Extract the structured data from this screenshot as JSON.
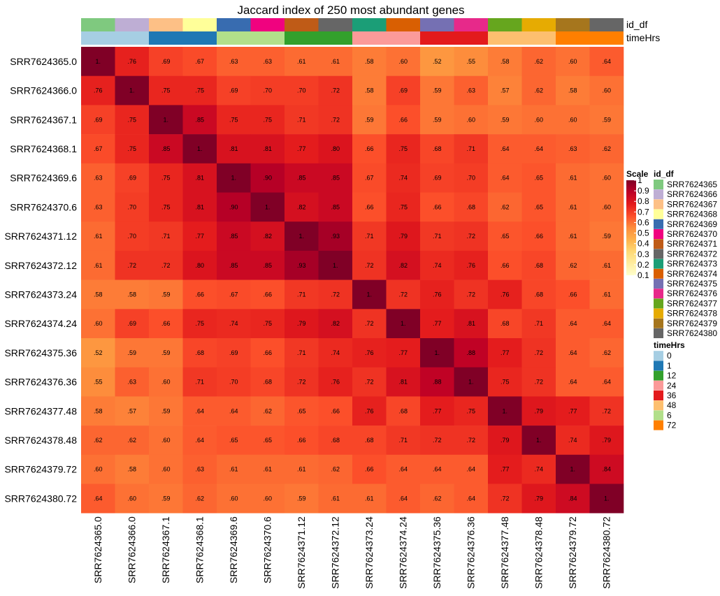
{
  "chart_data": {
    "type": "heatmap",
    "title": "Jaccard index of 250 most abundant genes",
    "rows": [
      "SRR7624365.0",
      "SRR7624366.0",
      "SRR7624367.1",
      "SRR7624368.1",
      "SRR7624369.6",
      "SRR7624370.6",
      "SRR7624371.12",
      "SRR7624372.12",
      "SRR7624373.24",
      "SRR7624374.24",
      "SRR7624375.36",
      "SRR7624376.36",
      "SRR7624377.48",
      "SRR7624378.48",
      "SRR7624379.72",
      "SRR7624380.72"
    ],
    "columns": [
      "SRR7624365.0",
      "SRR7624366.0",
      "SRR7624367.1",
      "SRR7624368.1",
      "SRR7624369.6",
      "SRR7624370.6",
      "SRR7624371.12",
      "SRR7624372.12",
      "SRR7624373.24",
      "SRR7624374.24",
      "SRR7624375.36",
      "SRR7624376.36",
      "SRR7624377.48",
      "SRR7624378.48",
      "SRR7624379.72",
      "SRR7624380.72"
    ],
    "values": [
      [
        1.0,
        0.76,
        0.69,
        0.67,
        0.63,
        0.63,
        0.61,
        0.61,
        0.58,
        0.6,
        0.52,
        0.55,
        0.58,
        0.62,
        0.6,
        0.64
      ],
      [
        0.76,
        1.0,
        0.75,
        0.75,
        0.69,
        0.7,
        0.7,
        0.72,
        0.58,
        0.69,
        0.59,
        0.63,
        0.57,
        0.62,
        0.58,
        0.6
      ],
      [
        0.69,
        0.75,
        1.0,
        0.85,
        0.75,
        0.75,
        0.71,
        0.72,
        0.59,
        0.66,
        0.59,
        0.6,
        0.59,
        0.6,
        0.6,
        0.59
      ],
      [
        0.67,
        0.75,
        0.85,
        1.0,
        0.81,
        0.81,
        0.77,
        0.8,
        0.66,
        0.75,
        0.68,
        0.71,
        0.64,
        0.64,
        0.63,
        0.62
      ],
      [
        0.63,
        0.69,
        0.75,
        0.81,
        1.0,
        0.9,
        0.85,
        0.85,
        0.67,
        0.74,
        0.69,
        0.7,
        0.64,
        0.65,
        0.61,
        0.6
      ],
      [
        0.63,
        0.7,
        0.75,
        0.81,
        0.9,
        1.0,
        0.82,
        0.85,
        0.66,
        0.75,
        0.66,
        0.68,
        0.62,
        0.65,
        0.61,
        0.6
      ],
      [
        0.61,
        0.7,
        0.71,
        0.77,
        0.85,
        0.82,
        1.0,
        0.93,
        0.71,
        0.79,
        0.71,
        0.72,
        0.65,
        0.66,
        0.61,
        0.59
      ],
      [
        0.61,
        0.72,
        0.72,
        0.8,
        0.85,
        0.85,
        0.93,
        1.0,
        0.72,
        0.82,
        0.74,
        0.76,
        0.66,
        0.68,
        0.62,
        0.61
      ],
      [
        0.58,
        0.58,
        0.59,
        0.66,
        0.67,
        0.66,
        0.71,
        0.72,
        1.0,
        0.72,
        0.76,
        0.72,
        0.76,
        0.68,
        0.66,
        0.61
      ],
      [
        0.6,
        0.69,
        0.66,
        0.75,
        0.74,
        0.75,
        0.79,
        0.82,
        0.72,
        1.0,
        0.77,
        0.81,
        0.68,
        0.71,
        0.64,
        0.64
      ],
      [
        0.52,
        0.59,
        0.59,
        0.68,
        0.69,
        0.66,
        0.71,
        0.74,
        0.76,
        0.77,
        1.0,
        0.88,
        0.77,
        0.72,
        0.64,
        0.62
      ],
      [
        0.55,
        0.63,
        0.6,
        0.71,
        0.7,
        0.68,
        0.72,
        0.76,
        0.72,
        0.81,
        0.88,
        1.0,
        0.75,
        0.72,
        0.64,
        0.64
      ],
      [
        0.58,
        0.57,
        0.59,
        0.64,
        0.64,
        0.62,
        0.65,
        0.66,
        0.76,
        0.68,
        0.77,
        0.75,
        1.0,
        0.79,
        0.77,
        0.72
      ],
      [
        0.62,
        0.62,
        0.6,
        0.64,
        0.65,
        0.65,
        0.66,
        0.68,
        0.68,
        0.71,
        0.72,
        0.72,
        0.79,
        1.0,
        0.74,
        0.79
      ],
      [
        0.6,
        0.58,
        0.6,
        0.63,
        0.61,
        0.61,
        0.61,
        0.62,
        0.66,
        0.64,
        0.64,
        0.64,
        0.77,
        0.74,
        1.0,
        0.84
      ],
      [
        0.64,
        0.6,
        0.59,
        0.62,
        0.6,
        0.6,
        0.59,
        0.61,
        0.61,
        0.64,
        0.62,
        0.64,
        0.72,
        0.79,
        0.84,
        1.0
      ]
    ],
    "cell_labels": [
      [
        "1.",
        ".76",
        ".69",
        ".67",
        ".63",
        ".63",
        ".61",
        ".61",
        ".58",
        ".60",
        ".52",
        ".55",
        ".58",
        ".62",
        ".60",
        ".64"
      ],
      [
        ".76",
        "1.",
        ".75",
        ".75",
        ".69",
        ".70",
        ".70",
        ".72",
        ".58",
        ".69",
        ".59",
        ".63",
        ".57",
        ".62",
        ".58",
        ".60"
      ],
      [
        ".69",
        ".75",
        "1.",
        ".85",
        ".75",
        ".75",
        ".71",
        ".72",
        ".59",
        ".66",
        ".59",
        ".60",
        ".59",
        ".60",
        ".60",
        ".59"
      ],
      [
        ".67",
        ".75",
        ".85",
        "1.",
        ".81",
        ".81",
        ".77",
        ".80",
        ".66",
        ".75",
        ".68",
        ".71",
        ".64",
        ".64",
        ".63",
        ".62"
      ],
      [
        ".63",
        ".69",
        ".75",
        ".81",
        "1.",
        ".90",
        ".85",
        ".85",
        ".67",
        ".74",
        ".69",
        ".70",
        ".64",
        ".65",
        ".61",
        ".60"
      ],
      [
        ".63",
        ".70",
        ".75",
        ".81",
        ".90",
        "1.",
        ".82",
        ".85",
        ".66",
        ".75",
        ".66",
        ".68",
        ".62",
        ".65",
        ".61",
        ".60"
      ],
      [
        ".61",
        ".70",
        ".71",
        ".77",
        ".85",
        ".82",
        "1.",
        ".93",
        ".71",
        ".79",
        ".71",
        ".72",
        ".65",
        ".66",
        ".61",
        ".59"
      ],
      [
        ".61",
        ".72",
        ".72",
        ".80",
        ".85",
        ".85",
        ".93",
        "1.",
        ".72",
        ".82",
        ".74",
        ".76",
        ".66",
        ".68",
        ".62",
        ".61"
      ],
      [
        ".58",
        ".58",
        ".59",
        ".66",
        ".67",
        ".66",
        ".71",
        ".72",
        "1.",
        ".72",
        ".76",
        ".72",
        ".76",
        ".68",
        ".66",
        ".61"
      ],
      [
        ".60",
        ".69",
        ".66",
        ".75",
        ".74",
        ".75",
        ".79",
        ".82",
        ".72",
        "1.",
        ".77",
        ".81",
        ".68",
        ".71",
        ".64",
        ".64"
      ],
      [
        ".52",
        ".59",
        ".59",
        ".68",
        ".69",
        ".66",
        ".71",
        ".74",
        ".76",
        ".77",
        "1.",
        ".88",
        ".77",
        ".72",
        ".64",
        ".62"
      ],
      [
        ".55",
        ".63",
        ".60",
        ".71",
        ".70",
        ".68",
        ".72",
        ".76",
        ".72",
        ".81",
        ".88",
        "1.",
        ".75",
        ".72",
        ".64",
        ".64"
      ],
      [
        ".58",
        ".57",
        ".59",
        ".64",
        ".64",
        ".62",
        ".65",
        ".66",
        ".76",
        ".68",
        ".77",
        ".75",
        "1.",
        ".79",
        ".77",
        ".72"
      ],
      [
        ".62",
        ".62",
        ".60",
        ".64",
        ".65",
        ".65",
        ".66",
        ".68",
        ".68",
        ".71",
        ".72",
        ".72",
        ".79",
        "1.",
        ".74",
        ".79"
      ],
      [
        ".60",
        ".58",
        ".60",
        ".63",
        ".61",
        ".61",
        ".61",
        ".62",
        ".66",
        ".64",
        ".64",
        ".64",
        ".77",
        ".74",
        "1.",
        ".84"
      ],
      [
        ".64",
        ".60",
        ".59",
        ".62",
        ".60",
        ".60",
        ".59",
        ".61",
        ".61",
        ".64",
        ".62",
        ".64",
        ".72",
        ".79",
        ".84",
        "1."
      ]
    ],
    "color_scale": {
      "title": "Scale",
      "range": [
        0.1,
        1
      ],
      "ticks": [
        "1",
        "0.9",
        "0.8",
        "0.7",
        "0.6",
        "0.5",
        "0.4",
        "0.3",
        "0.2",
        "0.1"
      ],
      "colors": [
        "#ffffcc",
        "#ffeda0",
        "#fed976",
        "#feb24c",
        "#fd8d3c",
        "#fc4e2a",
        "#e31a1c",
        "#bd0026",
        "#800026"
      ]
    },
    "annotations": [
      {
        "name": "id_df",
        "column_values": [
          "SRR7624365",
          "SRR7624366",
          "SRR7624367",
          "SRR7624368",
          "SRR7624369",
          "SRR7624370",
          "SRR7624371",
          "SRR7624372",
          "SRR7624373",
          "SRR7624374",
          "SRR7624375",
          "SRR7624376",
          "SRR7624377",
          "SRR7624378",
          "SRR7624379",
          "SRR7624380"
        ],
        "legend": [
          {
            "label": "SRR7624365",
            "color": "#7fc97f"
          },
          {
            "label": "SRR7624366",
            "color": "#beaed4"
          },
          {
            "label": "SRR7624367",
            "color": "#fdc086"
          },
          {
            "label": "SRR7624368",
            "color": "#ffff99"
          },
          {
            "label": "SRR7624369",
            "color": "#386cb0"
          },
          {
            "label": "SRR7624370",
            "color": "#f0027f"
          },
          {
            "label": "SRR7624371",
            "color": "#bf5b17"
          },
          {
            "label": "SRR7624372",
            "color": "#666666"
          },
          {
            "label": "SRR7624373",
            "color": "#1b9e77"
          },
          {
            "label": "SRR7624374",
            "color": "#d95f02"
          },
          {
            "label": "SRR7624375",
            "color": "#7570b3"
          },
          {
            "label": "SRR7624376",
            "color": "#e7298a"
          },
          {
            "label": "SRR7624377",
            "color": "#66a61e"
          },
          {
            "label": "SRR7624378",
            "color": "#e6ab02"
          },
          {
            "label": "SRR7624379",
            "color": "#a6761d"
          },
          {
            "label": "SRR7624380",
            "color": "#666666"
          }
        ]
      },
      {
        "name": "timeHrs",
        "column_values": [
          "0",
          "0",
          "1",
          "1",
          "6",
          "6",
          "12",
          "12",
          "24",
          "24",
          "36",
          "36",
          "48",
          "48",
          "72",
          "72"
        ],
        "legend": [
          {
            "label": "0",
            "color": "#a6cee3"
          },
          {
            "label": "1",
            "color": "#1f78b4"
          },
          {
            "label": "12",
            "color": "#33a02c"
          },
          {
            "label": "24",
            "color": "#fb9a99"
          },
          {
            "label": "36",
            "color": "#e31a1c"
          },
          {
            "label": "48",
            "color": "#fdbf6f"
          },
          {
            "label": "6",
            "color": "#b2df8a"
          },
          {
            "label": "72",
            "color": "#ff7f00"
          }
        ]
      }
    ]
  }
}
